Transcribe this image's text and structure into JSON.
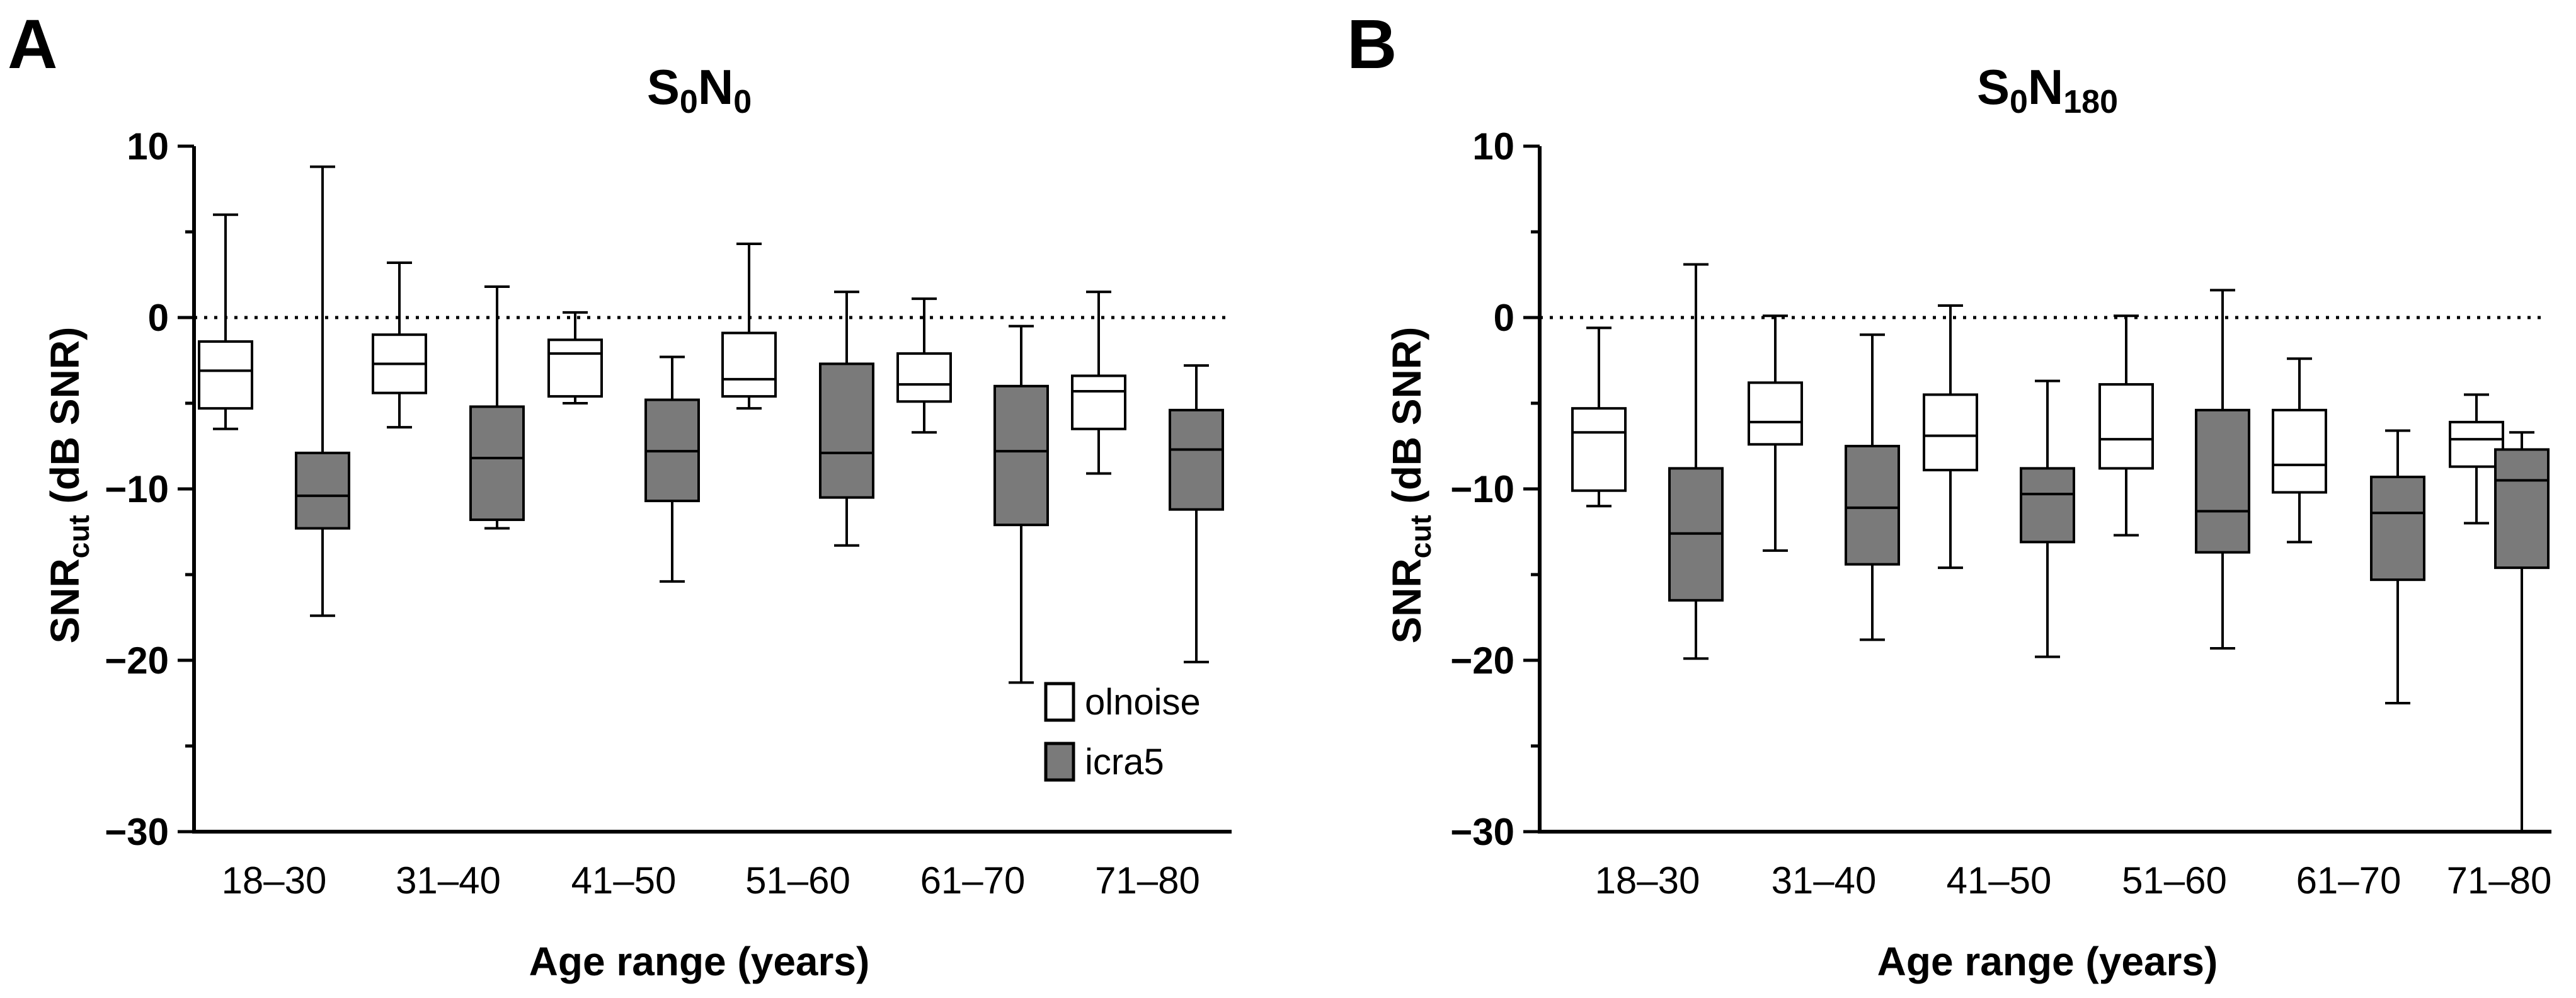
{
  "chart_data": [
    {
      "panel": "A",
      "type": "box",
      "title": "S0N0",
      "title_parts": {
        "base1": "S",
        "sub1": "0",
        "base2": "N",
        "sub2": "0"
      },
      "ylabel_parts": {
        "base": "SNR",
        "sub": "cut",
        "rest": " (dB  SNR)"
      },
      "xlabel": "Age range (years)",
      "ylim": [
        -30,
        10
      ],
      "yticks": [
        10,
        0,
        -10,
        -20,
        -30
      ],
      "ytick_labels": [
        "10",
        "0",
        "−10",
        "−20",
        "−30"
      ],
      "reference_line": 0,
      "categories": [
        "18–30",
        "31–40",
        "41–50",
        "51–60",
        "61–70",
        "71–80"
      ],
      "legend": {
        "position": "bottom-right"
      },
      "series": [
        {
          "name": "olnoise",
          "color": "#ffffff",
          "boxes": [
            {
              "min": -6.5,
              "q1": -5.3,
              "median": -3.1,
              "q3": -1.4,
              "max": 6.0
            },
            {
              "min": -6.4,
              "q1": -4.4,
              "median": -2.7,
              "q3": -1.0,
              "max": 3.2
            },
            {
              "min": -5.0,
              "q1": -4.6,
              "median": -2.1,
              "q3": -1.3,
              "max": 0.3
            },
            {
              "min": -5.3,
              "q1": -4.6,
              "median": -3.6,
              "q3": -0.9,
              "max": 4.3
            },
            {
              "min": -6.7,
              "q1": -4.9,
              "median": -3.9,
              "q3": -2.1,
              "max": 1.1
            },
            {
              "min": -9.1,
              "q1": -6.5,
              "median": -4.3,
              "q3": -3.4,
              "max": 1.5
            }
          ]
        },
        {
          "name": "icra5",
          "color": "#7a7a7a",
          "boxes": [
            {
              "min": -17.4,
              "q1": -12.3,
              "median": -10.4,
              "q3": -7.9,
              "max": 8.8
            },
            {
              "min": -12.3,
              "q1": -11.8,
              "median": -8.2,
              "q3": -5.2,
              "max": 1.8
            },
            {
              "min": -15.4,
              "q1": -10.7,
              "median": -7.8,
              "q3": -4.8,
              "max": -2.3
            },
            {
              "min": -13.3,
              "q1": -10.5,
              "median": -7.9,
              "q3": -2.7,
              "max": 1.5
            },
            {
              "min": -21.3,
              "q1": -12.1,
              "median": -7.8,
              "q3": -4.0,
              "max": -0.5
            },
            {
              "min": -20.1,
              "q1": -11.2,
              "median": -7.7,
              "q3": -5.4,
              "max": -2.8
            }
          ]
        }
      ]
    },
    {
      "panel": "B",
      "type": "box",
      "title": "S0N180",
      "title_parts": {
        "base1": "S",
        "sub1": "0",
        "base2": "N",
        "sub2": "180"
      },
      "ylabel_parts": {
        "base": "SNR",
        "sub": "cut",
        "rest": " (dB  SNR)"
      },
      "xlabel": "Age range (years)",
      "ylim": [
        -30,
        10
      ],
      "yticks": [
        10,
        0,
        -10,
        -20,
        -30
      ],
      "ytick_labels": [
        "10",
        "0",
        "−10",
        "−20",
        "−30"
      ],
      "reference_line": 0,
      "categories": [
        "18–30",
        "31–40",
        "41–50",
        "51–60",
        "61–70",
        "71–80"
      ],
      "series": [
        {
          "name": "olnoise",
          "color": "#ffffff",
          "boxes": [
            {
              "min": -11.0,
              "q1": -10.1,
              "median": -6.7,
              "q3": -5.3,
              "max": -0.6
            },
            {
              "min": -13.6,
              "q1": -7.4,
              "median": -6.1,
              "q3": -3.8,
              "max": 0.1
            },
            {
              "min": -14.6,
              "q1": -8.9,
              "median": -6.9,
              "q3": -4.5,
              "max": 0.7
            },
            {
              "min": -12.7,
              "q1": -8.8,
              "median": -7.1,
              "q3": -3.9,
              "max": 0.1
            },
            {
              "min": -13.1,
              "q1": -10.2,
              "median": -8.6,
              "q3": -5.4,
              "max": -2.4
            },
            {
              "min": -12.0,
              "q1": -8.7,
              "median": -7.1,
              "q3": -6.1,
              "max": -4.5
            }
          ]
        },
        {
          "name": "icra5",
          "color": "#7a7a7a",
          "boxes": [
            {
              "min": -19.9,
              "q1": -16.5,
              "median": -12.6,
              "q3": -8.8,
              "max": 3.1
            },
            {
              "min": -18.8,
              "q1": -14.4,
              "median": -11.1,
              "q3": -7.5,
              "max": -1.0
            },
            {
              "min": -19.8,
              "q1": -13.1,
              "median": -10.3,
              "q3": -8.8,
              "max": -3.7
            },
            {
              "min": -19.3,
              "q1": -13.7,
              "median": -11.3,
              "q3": -5.4,
              "max": 1.6
            },
            {
              "min": -22.5,
              "q1": -15.3,
              "median": -11.4,
              "q3": -9.3,
              "max": -6.6
            },
            {
              "min": -30.0,
              "q1": -14.6,
              "median": -9.5,
              "q3": -7.7,
              "max": -6.7
            }
          ]
        }
      ]
    }
  ]
}
